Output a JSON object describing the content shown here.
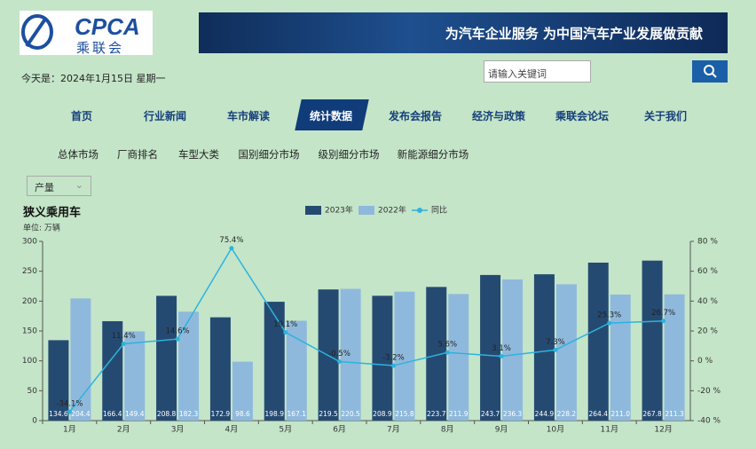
{
  "header": {
    "logo_text": "CPCA",
    "logo_cn": "乘联会",
    "banner": "为汽车企业服务 为中国汽车产业发展做贡献",
    "date": "今天是：2024年1月15日 星期一",
    "search_placeholder": "请输入关键词"
  },
  "nav": [
    "首页",
    "行业新闻",
    "车市解读",
    "统计数据",
    "发布会报告",
    "经济与政策",
    "乘联会论坛",
    "关于我们"
  ],
  "subnav": [
    "总体市场",
    "厂商排名",
    "车型大类",
    "国别细分市场",
    "级别细分市场",
    "新能源细分市场"
  ],
  "dropdown": "产量",
  "chart_data": {
    "type": "bar",
    "title": "狭义乘用车",
    "subtitle": "单位:  万辆",
    "categories": [
      "1月",
      "2月",
      "3月",
      "4月",
      "5月",
      "6月",
      "7月",
      "8月",
      "9月",
      "10月",
      "11月",
      "12月"
    ],
    "series": [
      {
        "name": "2023年",
        "color": "#254a72",
        "values": [
          134.6,
          166.4,
          208.8,
          172.9,
          198.9,
          219.5,
          208.9,
          223.7,
          243.7,
          244.9,
          264.4,
          267.8
        ],
        "value_labels": [
          "134.6",
          "166.4",
          "208.8",
          "172.9",
          "198.9",
          "219.5",
          "208.9",
          "223.7",
          "243.7",
          "244.9",
          "264.4",
          "267.8"
        ]
      },
      {
        "name": "2022年",
        "color": "#8fb9dc",
        "values": [
          204.4,
          149.4,
          182.3,
          98.6,
          167.1,
          220.5,
          215.8,
          211.9,
          236.3,
          228.2,
          211.0,
          211.3
        ],
        "value_labels": [
          "204.4",
          "149.4",
          "182.3",
          "98.6",
          "167.1",
          "220.5",
          "215.8",
          "211.9",
          "236.3",
          "228.2",
          "211.0",
          "211.3"
        ]
      },
      {
        "name": "同比",
        "type": "line",
        "axis": "y2",
        "color": "#2cb3dd",
        "values": [
          -34.1,
          11.4,
          14.6,
          75.4,
          19.1,
          -0.5,
          -3.2,
          5.6,
          3.1,
          7.3,
          25.3,
          26.7
        ],
        "value_labels": [
          "-34.1%",
          "11.4%",
          "14.6%",
          "75.4%",
          "19.1%",
          "-0.5%",
          "-3.2%",
          "5.6%",
          "3.1%",
          "7.3%",
          "25.3%",
          "26.7%"
        ]
      }
    ],
    "ylim": [
      0,
      300
    ],
    "yticks": [
      0,
      50,
      100,
      150,
      200,
      250,
      300
    ],
    "y2lim": [
      -40,
      80
    ],
    "y2ticks": [
      {
        "value": -40,
        "label": "-40 %"
      },
      {
        "value": -20,
        "label": "-20 %"
      },
      {
        "value": 0,
        "label": "0 %"
      },
      {
        "value": 20,
        "label": "20 %"
      },
      {
        "value": 40,
        "label": "40 %"
      },
      {
        "value": 60,
        "label": "60 %"
      },
      {
        "value": 80,
        "label": "80 %"
      }
    ],
    "grid": false,
    "legend": "top"
  }
}
